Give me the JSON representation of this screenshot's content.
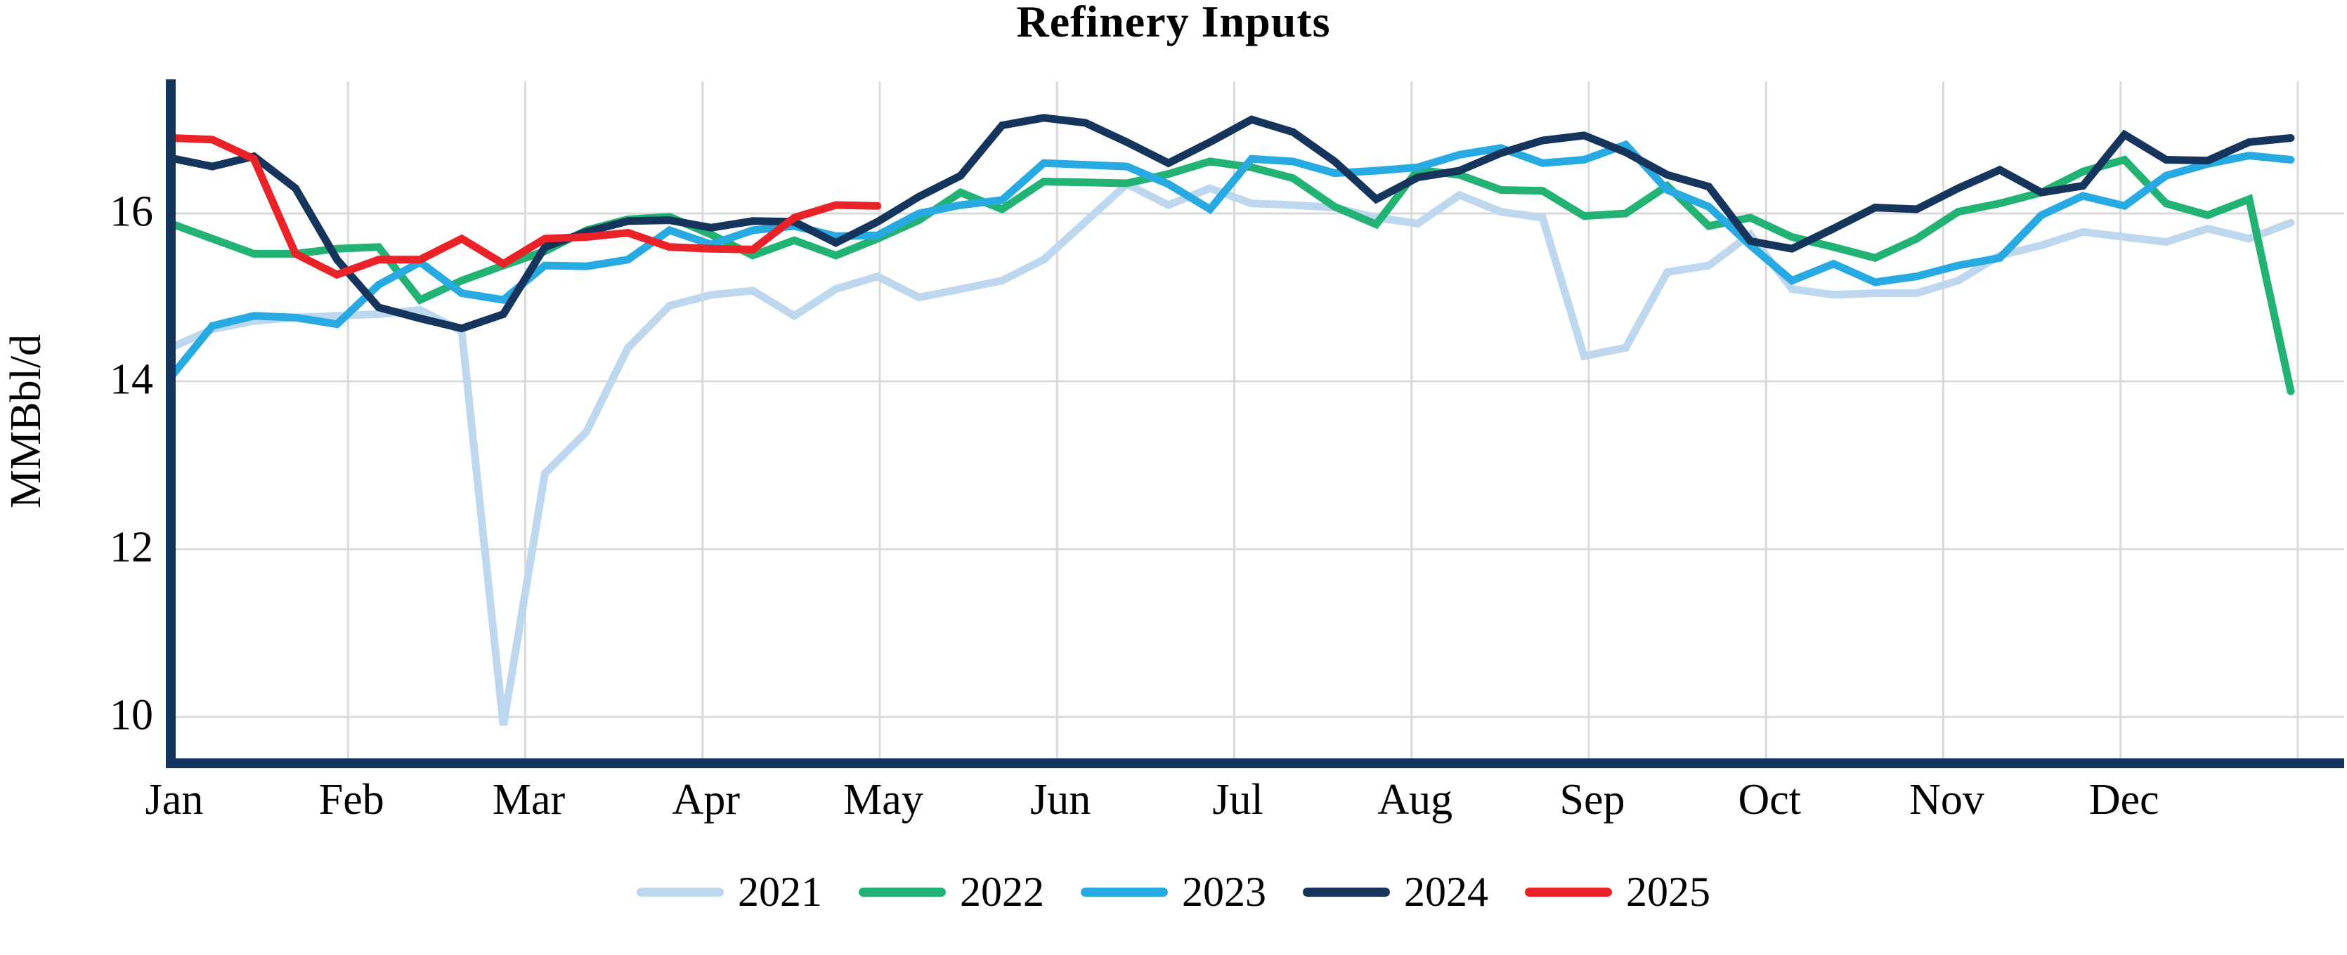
{
  "title": "Refinery Inputs",
  "y_axis": {
    "label": "MMBbl/d",
    "ticks": [
      "16",
      "14",
      "12",
      "10"
    ],
    "tick_values": [
      16,
      14,
      12,
      10
    ]
  },
  "x_axis": {
    "months": [
      "Jan",
      "Feb",
      "Mar",
      "Apr",
      "May",
      "Jun",
      "Jul",
      "Aug",
      "Sep",
      "Oct",
      "Nov",
      "Dec"
    ]
  },
  "colors": {
    "axis": "#16355C",
    "gridline": "#D9D9D9",
    "background": "#FFFFFF"
  },
  "legend": [
    {
      "label": "2021",
      "color": "#BDD7EE"
    },
    {
      "label": "2022",
      "color": "#21B274"
    },
    {
      "label": "2023",
      "color": "#27AAE1"
    },
    {
      "label": "2024",
      "color": "#16355C"
    },
    {
      "label": "2025",
      "color": "#EB2227"
    }
  ],
  "chart_data": {
    "type": "line",
    "title": "Refinery Inputs",
    "xlabel": "",
    "ylabel": "MMBbl/d",
    "x_unit": "week of year (weekly values, Jan through Dec)",
    "x_tick_labels": [
      "Jan",
      "Feb",
      "Mar",
      "Apr",
      "May",
      "Jun",
      "Jul",
      "Aug",
      "Sep",
      "Oct",
      "Nov",
      "Dec"
    ],
    "y_ticks": [
      10,
      12,
      14,
      16
    ],
    "ylim": [
      9.45,
      17.55
    ],
    "grid": true,
    "legend_position": "bottom",
    "series": [
      {
        "name": "2021",
        "color": "#BDD7EE",
        "values": [
          14.4,
          14.62,
          14.72,
          14.76,
          14.78,
          14.8,
          14.85,
          14.6,
          9.9,
          12.9,
          13.4,
          14.4,
          14.9,
          15.03,
          15.08,
          14.78,
          15.1,
          15.25,
          15.0,
          15.1,
          15.2,
          15.45,
          15.9,
          16.35,
          16.1,
          16.3,
          16.12,
          16.1,
          16.07,
          15.95,
          15.88,
          16.22,
          16.02,
          15.95,
          14.3,
          14.4,
          15.3,
          15.38,
          15.75,
          15.1,
          15.03,
          15.05,
          15.05,
          15.2,
          15.5,
          15.62,
          15.78,
          15.72,
          15.66,
          15.82,
          15.7,
          15.89
        ]
      },
      {
        "name": "2022",
        "color": "#21B274",
        "values": [
          15.88,
          15.7,
          15.52,
          15.52,
          15.58,
          15.6,
          14.97,
          15.2,
          15.38,
          15.55,
          15.8,
          15.93,
          15.96,
          15.75,
          15.5,
          15.68,
          15.5,
          15.7,
          15.92,
          16.25,
          16.05,
          16.38,
          16.37,
          16.36,
          16.47,
          16.62,
          16.55,
          16.42,
          16.08,
          15.87,
          16.52,
          16.46,
          16.28,
          16.27,
          15.97,
          16.0,
          16.33,
          15.85,
          15.95,
          15.72,
          15.6,
          15.47,
          15.7,
          16.02,
          16.12,
          16.25,
          16.5,
          16.64,
          16.12,
          15.98,
          16.17,
          13.88
        ]
      },
      {
        "name": "2023",
        "color": "#27AAE1",
        "values": [
          14.05,
          14.66,
          14.78,
          14.76,
          14.68,
          15.15,
          15.42,
          15.05,
          14.97,
          15.38,
          15.37,
          15.45,
          15.8,
          15.63,
          15.8,
          15.85,
          15.73,
          15.74,
          16.0,
          16.1,
          16.16,
          16.6,
          16.58,
          16.56,
          16.35,
          16.05,
          16.65,
          16.62,
          16.48,
          16.51,
          16.55,
          16.7,
          16.78,
          16.6,
          16.64,
          16.82,
          16.28,
          16.08,
          15.62,
          15.2,
          15.4,
          15.18,
          15.25,
          15.38,
          15.47,
          15.98,
          16.21,
          16.09,
          16.45,
          16.59,
          16.69,
          16.64
        ]
      },
      {
        "name": "2024",
        "color": "#16355C",
        "values": [
          16.66,
          16.56,
          16.68,
          16.3,
          15.45,
          14.88,
          14.75,
          14.63,
          14.8,
          15.6,
          15.78,
          15.91,
          15.92,
          15.83,
          15.91,
          15.9,
          15.65,
          15.9,
          16.2,
          16.45,
          17.05,
          17.14,
          17.08,
          16.85,
          16.6,
          16.85,
          17.12,
          16.97,
          16.62,
          16.17,
          16.43,
          16.51,
          16.72,
          16.87,
          16.93,
          16.73,
          16.46,
          16.32,
          15.67,
          15.58,
          15.82,
          16.07,
          16.05,
          16.3,
          16.52,
          16.25,
          16.33,
          16.94,
          16.64,
          16.63,
          16.85,
          16.9
        ]
      },
      {
        "name": "2025",
        "color": "#EB2227",
        "values": [
          16.9,
          16.88,
          16.65,
          15.52,
          15.27,
          15.45,
          15.45,
          15.7,
          15.4,
          15.7,
          15.72,
          15.77,
          15.6,
          15.58,
          15.57,
          15.95,
          16.1,
          16.09
        ]
      }
    ]
  }
}
